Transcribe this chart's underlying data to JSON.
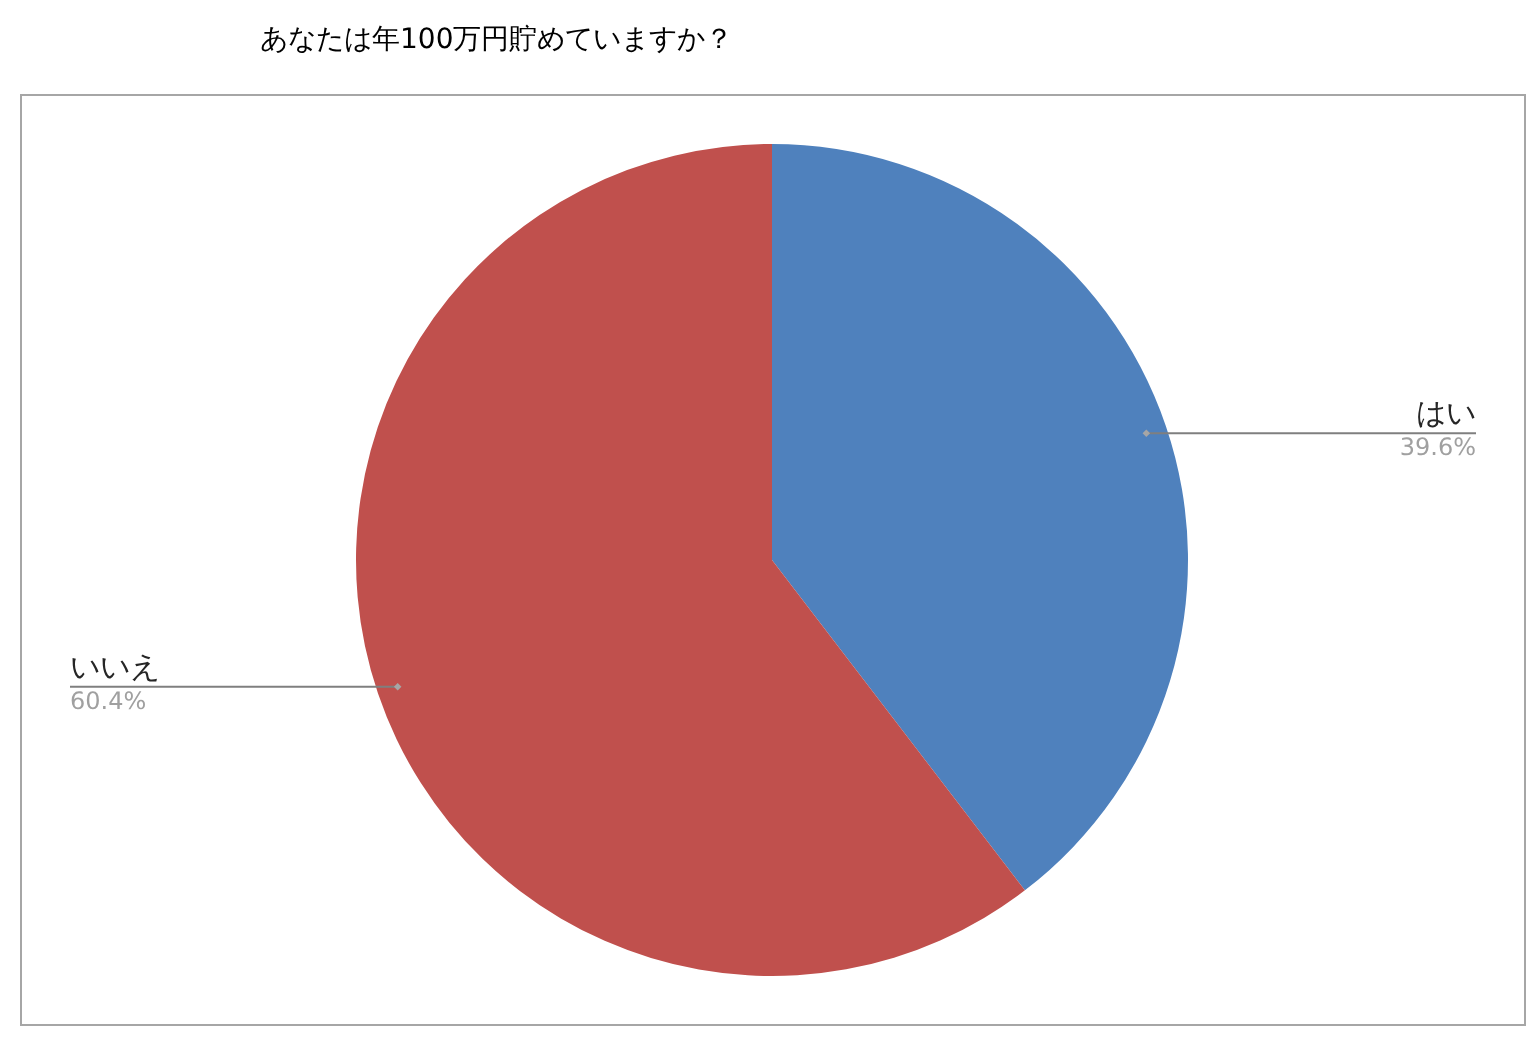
{
  "chart_data": {
    "type": "pie",
    "title": "あなたは年100万円貯めていますか？",
    "categories": [
      "はい",
      "いいえ"
    ],
    "values": [
      39.6,
      60.4
    ],
    "colors": [
      "#4f81bd",
      "#c0504d"
    ],
    "value_labels": [
      "39.6%",
      "60.4%"
    ]
  }
}
